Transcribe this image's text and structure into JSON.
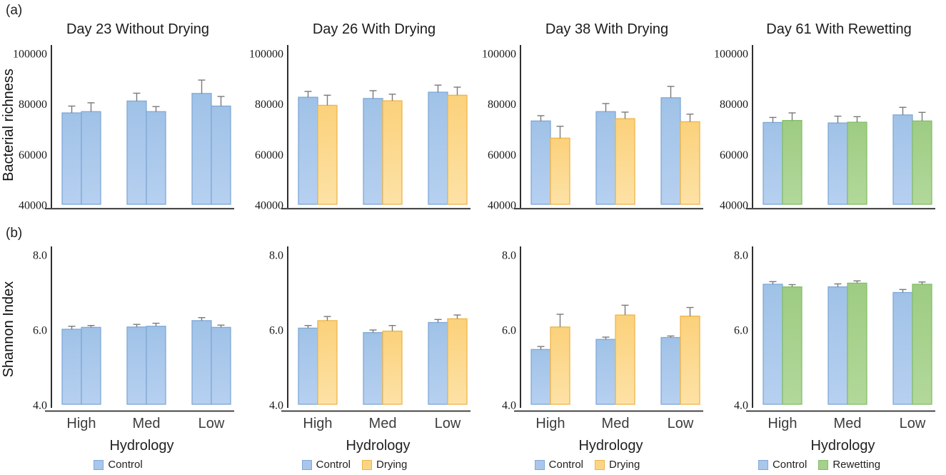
{
  "figure": {
    "panel_a_label": "(a)",
    "panel_b_label": "(b)",
    "row_a_ylabel": "Bacterial richness",
    "row_b_ylabel": "Shannon Index"
  },
  "colors": {
    "series": {
      "blue": {
        "fill_top": "#a0c2e7",
        "fill_bottom": "#b6d0f0",
        "border": "#7fa8d6",
        "swatch": "#a9c7ea"
      },
      "yellow": {
        "fill_top": "#fbd17b",
        "fill_bottom": "#fde2a6",
        "border": "#eeb54a",
        "swatch": "#fbd586"
      },
      "green": {
        "fill_top": "#9ecc83",
        "fill_bottom": "#b2d89a",
        "border": "#85be68",
        "swatch": "#a6d08c"
      }
    },
    "error_bar": "#7a7a7a",
    "axis": "#2e2e2e"
  },
  "chart_data": [
    {
      "type": "bar",
      "panel": "a1",
      "title": "Day 23 Without Drying",
      "ylabel": "Bacterial richness",
      "ylim": [
        40000,
        100000
      ],
      "yticks": [
        40000,
        60000,
        80000,
        100000
      ],
      "ytick_format": "int",
      "categories": [
        "High",
        "Med",
        "Low"
      ],
      "show_xticklabels": false,
      "series": [
        {
          "name": "Control",
          "color": "blue",
          "values": [
            76500,
            81200,
            84200
          ],
          "errors": [
            2700,
            3100,
            5300
          ]
        },
        {
          "name": "Control",
          "color": "blue",
          "values": [
            77000,
            77000,
            79200
          ],
          "errors": [
            3500,
            2000,
            3800
          ]
        }
      ]
    },
    {
      "type": "bar",
      "panel": "a2",
      "title": "Day 26 With Drying",
      "ylabel": "",
      "ylim": [
        40000,
        100000
      ],
      "yticks": [
        40000,
        60000,
        80000,
        100000
      ],
      "ytick_format": "int",
      "categories": [
        "High",
        "Med",
        "Low"
      ],
      "show_xticklabels": false,
      "series": [
        {
          "name": "Control",
          "color": "blue",
          "values": [
            82700,
            82200,
            84700
          ],
          "errors": [
            2300,
            3100,
            2800
          ]
        },
        {
          "name": "Drying",
          "color": "yellow",
          "values": [
            79500,
            81300,
            83500
          ],
          "errors": [
            4000,
            2600,
            3200
          ]
        }
      ]
    },
    {
      "type": "bar",
      "panel": "a3",
      "title": "Day 38 With Drying",
      "ylabel": "",
      "ylim": [
        40000,
        100000
      ],
      "yticks": [
        40000,
        60000,
        80000,
        100000
      ],
      "ytick_format": "int",
      "categories": [
        "High",
        "Med",
        "Low"
      ],
      "show_xticklabels": false,
      "series": [
        {
          "name": "Control",
          "color": "blue",
          "values": [
            73300,
            77000,
            82500
          ],
          "errors": [
            2100,
            3200,
            4500
          ]
        },
        {
          "name": "Drying",
          "color": "yellow",
          "values": [
            66500,
            74200,
            73000
          ],
          "errors": [
            4700,
            2600,
            3000
          ]
        }
      ]
    },
    {
      "type": "bar",
      "panel": "a4",
      "title": "Day 61 With Rewetting",
      "ylabel": "",
      "ylim": [
        40000,
        100000
      ],
      "yticks": [
        40000,
        60000,
        80000,
        100000
      ],
      "ytick_format": "int",
      "categories": [
        "High",
        "Med",
        "Low"
      ],
      "show_xticklabels": false,
      "series": [
        {
          "name": "Control",
          "color": "blue",
          "values": [
            72700,
            72500,
            75700
          ],
          "errors": [
            2000,
            2700,
            3000
          ]
        },
        {
          "name": "Rewetting",
          "color": "green",
          "values": [
            73500,
            72800,
            73300
          ],
          "errors": [
            3000,
            2200,
            3400
          ]
        }
      ]
    },
    {
      "type": "bar",
      "panel": "b1",
      "title": "",
      "ylabel": "Shannon Index",
      "xlabel": "Hydrology",
      "ylim": [
        4.0,
        8.0
      ],
      "yticks": [
        4.0,
        6.0,
        8.0
      ],
      "ytick_format": "1dp",
      "categories": [
        "High",
        "Med",
        "Low"
      ],
      "show_xticklabels": true,
      "series": [
        {
          "name": "Control",
          "color": "blue",
          "values": [
            6.02,
            6.08,
            6.25
          ],
          "errors": [
            0.08,
            0.07,
            0.08
          ]
        },
        {
          "name": "Control",
          "color": "blue",
          "values": [
            6.07,
            6.1,
            6.07
          ],
          "errors": [
            0.05,
            0.08,
            0.06
          ]
        }
      ],
      "legend": {
        "title": "Hydrology",
        "items": [
          {
            "label": "Control",
            "color": "blue"
          }
        ]
      }
    },
    {
      "type": "bar",
      "panel": "b2",
      "title": "",
      "ylabel": "",
      "xlabel": "Hydrology",
      "ylim": [
        4.0,
        8.0
      ],
      "yticks": [
        4.0,
        6.0,
        8.0
      ],
      "ytick_format": "1dp",
      "categories": [
        "High",
        "Med",
        "Low"
      ],
      "show_xticklabels": true,
      "series": [
        {
          "name": "Control",
          "color": "blue",
          "values": [
            6.05,
            5.93,
            6.2
          ],
          "errors": [
            0.07,
            0.07,
            0.08
          ]
        },
        {
          "name": "Drying",
          "color": "yellow",
          "values": [
            6.25,
            5.97,
            6.3
          ],
          "errors": [
            0.11,
            0.15,
            0.1
          ]
        }
      ],
      "legend": {
        "title": "Hydrology",
        "items": [
          {
            "label": "Control",
            "color": "blue"
          },
          {
            "label": "Drying",
            "color": "yellow"
          }
        ]
      }
    },
    {
      "type": "bar",
      "panel": "b3",
      "title": "",
      "ylabel": "",
      "xlabel": "Hydrology",
      "ylim": [
        4.0,
        8.0
      ],
      "yticks": [
        4.0,
        6.0,
        8.0
      ],
      "ytick_format": "1dp",
      "categories": [
        "High",
        "Med",
        "Low"
      ],
      "show_xticklabels": true,
      "series": [
        {
          "name": "Control",
          "color": "blue",
          "values": [
            5.48,
            5.75,
            5.8
          ],
          "errors": [
            0.08,
            0.06,
            0.04
          ]
        },
        {
          "name": "Drying",
          "color": "yellow",
          "values": [
            6.08,
            6.4,
            6.37
          ],
          "errors": [
            0.34,
            0.26,
            0.23
          ]
        }
      ],
      "legend": {
        "title": "Hydrology",
        "items": [
          {
            "label": "Control",
            "color": "blue"
          },
          {
            "label": "Drying",
            "color": "yellow"
          }
        ]
      }
    },
    {
      "type": "bar",
      "panel": "b4",
      "title": "",
      "ylabel": "",
      "xlabel": "Hydrology",
      "ylim": [
        4.0,
        8.0
      ],
      "yticks": [
        4.0,
        6.0,
        8.0
      ],
      "ytick_format": "1dp",
      "categories": [
        "High",
        "Med",
        "Low"
      ],
      "show_xticklabels": true,
      "series": [
        {
          "name": "Control",
          "color": "blue",
          "values": [
            7.22,
            7.15,
            7.0
          ],
          "errors": [
            0.07,
            0.08,
            0.08
          ]
        },
        {
          "name": "Rewetting",
          "color": "green",
          "values": [
            7.15,
            7.25,
            7.22
          ],
          "errors": [
            0.06,
            0.06,
            0.06
          ]
        }
      ],
      "legend": {
        "title": "Hydrology",
        "items": [
          {
            "label": "Control",
            "color": "blue"
          },
          {
            "label": "Rewetting",
            "color": "green"
          }
        ]
      }
    }
  ]
}
